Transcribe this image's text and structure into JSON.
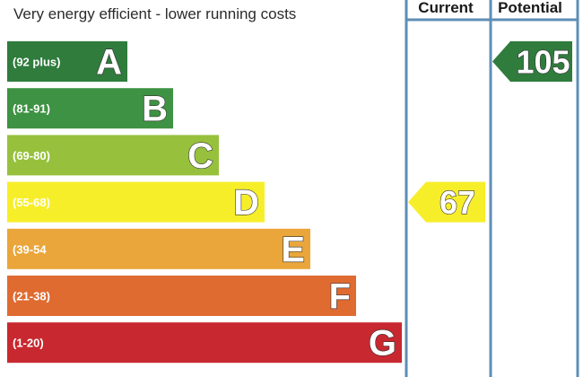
{
  "header": {
    "efficient_label": "Very energy efficient - lower running costs"
  },
  "columns": {
    "current_label": "Current",
    "potential_label": "Potential"
  },
  "chart_data": {
    "type": "bar",
    "categories": [
      "A",
      "B",
      "C",
      "D",
      "E",
      "F",
      "G"
    ],
    "ranges": [
      "(92 plus)",
      "(81-91)",
      "(69-80)",
      "(55-68)",
      "(39-54",
      "(21-38)",
      "(1-20)"
    ],
    "band_colors": [
      "#2f7c3d",
      "#3e9243",
      "#97c13c",
      "#f7ee2a",
      "#eaa63a",
      "#df6b31",
      "#c8282f"
    ],
    "current": {
      "value": 67,
      "band": "D",
      "color": "#f7ee2a"
    },
    "potential": {
      "value": 105,
      "band": "A",
      "color": "#2f7c3d"
    }
  }
}
